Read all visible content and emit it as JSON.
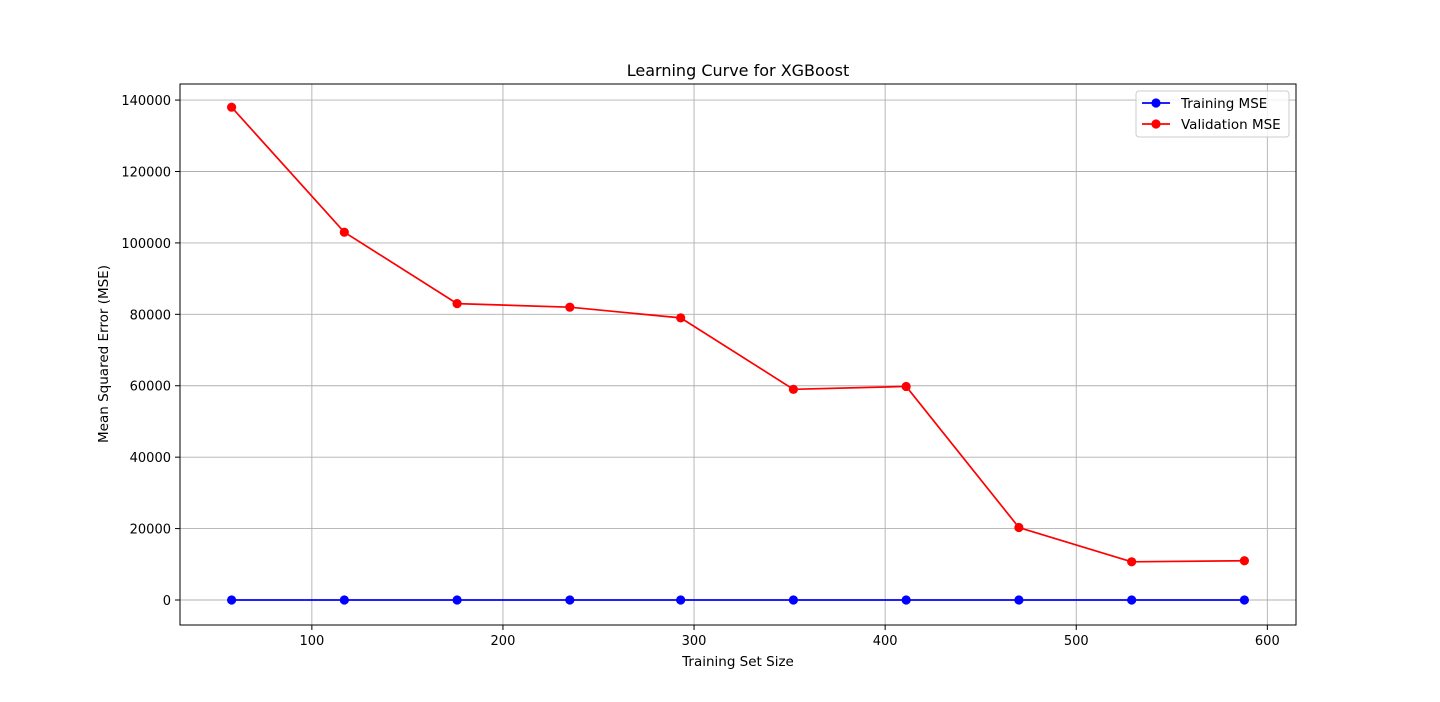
{
  "chart_data": {
    "type": "line",
    "title": "Learning Curve for XGBoost",
    "xlabel": "Training Set Size",
    "ylabel": "Mean Squared Error (MSE)",
    "xlim": [
      31,
      615
    ],
    "ylim": [
      -7000,
      144500
    ],
    "xticks": [
      100,
      200,
      300,
      400,
      500,
      600
    ],
    "yticks": [
      0,
      20000,
      40000,
      60000,
      80000,
      100000,
      120000,
      140000
    ],
    "grid": true,
    "legend_position": "upper right",
    "x": [
      58,
      117,
      176,
      235,
      293,
      352,
      411,
      470,
      529,
      588
    ],
    "series": [
      {
        "name": "Training MSE",
        "color": "#0000ff",
        "marker": "circle",
        "values": [
          0,
          0,
          0,
          0,
          0,
          0,
          0,
          0,
          0,
          0
        ]
      },
      {
        "name": "Validation MSE",
        "color": "#ff0000",
        "marker": "circle",
        "values": [
          138000,
          103000,
          83000,
          82000,
          79000,
          59000,
          59800,
          20300,
          10700,
          11000
        ]
      }
    ]
  }
}
